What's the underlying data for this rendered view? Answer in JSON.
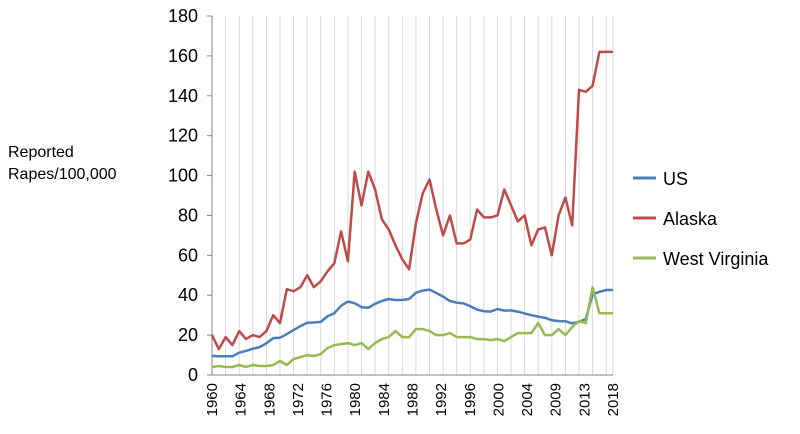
{
  "chart_data": {
    "type": "line",
    "title": "",
    "ylabel_lines": [
      "Reported",
      "Rapes/100,000"
    ],
    "xlabel": "",
    "ylim": [
      0,
      180
    ],
    "yticks": [
      0,
      20,
      40,
      60,
      80,
      100,
      120,
      140,
      160,
      180
    ],
    "xlim": [
      1960,
      2019
    ],
    "xtick_labels": [
      "1960",
      "1964",
      "1968",
      "1972",
      "1976",
      "1980",
      "1984",
      "1988",
      "1992",
      "1996",
      "2000",
      "2004",
      "2009",
      "2013",
      "2018"
    ],
    "grid": "vertical",
    "legend_position": "right",
    "x": [
      1960,
      1961,
      1962,
      1963,
      1964,
      1965,
      1966,
      1967,
      1968,
      1969,
      1970,
      1971,
      1972,
      1973,
      1974,
      1975,
      1976,
      1977,
      1978,
      1979,
      1980,
      1981,
      1982,
      1983,
      1984,
      1985,
      1986,
      1987,
      1988,
      1989,
      1990,
      1991,
      1992,
      1993,
      1994,
      1995,
      1996,
      1997,
      1998,
      1999,
      2000,
      2001,
      2002,
      2003,
      2004,
      2005,
      2006,
      2007,
      2008,
      2009,
      2010,
      2011,
      2012,
      2013,
      2014,
      2015,
      2016,
      2017,
      2018,
      2019
    ],
    "series": [
      {
        "name": "US",
        "color": "#4a7ebb",
        "values": [
          9.6,
          9.4,
          9.4,
          9.4,
          11.2,
          12.1,
          13.2,
          14.0,
          15.9,
          18.5,
          18.7,
          20.5,
          22.5,
          24.5,
          26.2,
          26.3,
          26.6,
          29.4,
          31.0,
          34.7,
          36.8,
          36.0,
          34.0,
          33.7,
          35.7,
          37.1,
          38.1,
          37.6,
          37.6,
          38.1,
          41.2,
          42.3,
          42.8,
          41.1,
          39.3,
          37.1,
          36.3,
          35.9,
          34.5,
          32.8,
          32.0,
          31.8,
          33.1,
          32.3,
          32.4,
          31.8,
          30.9,
          30.0,
          29.3,
          28.7,
          27.5,
          27.0,
          26.9,
          25.9,
          26.6,
          28.1,
          40.4,
          41.7,
          42.6,
          42.6
        ]
      },
      {
        "name": "Alaska",
        "color": "#be4b48",
        "values": [
          20.0,
          13.0,
          19.0,
          15.0,
          22.0,
          18.0,
          20.0,
          19.0,
          22.0,
          30.0,
          26.0,
          43.0,
          42.0,
          44.0,
          50.0,
          44.0,
          47.0,
          52.0,
          56.0,
          72.0,
          57.0,
          102.0,
          85.0,
          102.0,
          93.0,
          78.0,
          73.0,
          65.0,
          58.0,
          53.0,
          76.0,
          91.0,
          98.0,
          83.0,
          70.0,
          80.0,
          66.0,
          66.0,
          68.0,
          83.0,
          79.0,
          79.0,
          80.0,
          93.0,
          85.0,
          77.0,
          80.0,
          65.0,
          73.0,
          74.0,
          60.0,
          80.0,
          89.0,
          75.0,
          143.0,
          142.0,
          145.0,
          162.0,
          162.0,
          162.0
        ]
      },
      {
        "name": "West Virginia",
        "color": "#98b954",
        "values": [
          4.0,
          4.5,
          4.0,
          4.0,
          5.0,
          4.0,
          5.0,
          4.5,
          4.5,
          5.0,
          7.0,
          5.0,
          8.0,
          9.0,
          10.0,
          9.5,
          10.5,
          13.5,
          15.0,
          15.5,
          16.0,
          15.0,
          16.0,
          13.0,
          16.0,
          18.0,
          19.0,
          22.0,
          19.0,
          19.0,
          23.0,
          23.0,
          22.0,
          20.0,
          20.0,
          21.0,
          19.0,
          19.0,
          19.0,
          18.0,
          18.0,
          17.5,
          18.0,
          17.0,
          19.0,
          21.0,
          21.0,
          21.0,
          26.0,
          20.0,
          20.0,
          23.0,
          20.0,
          24.0,
          27.0,
          26.0,
          44.0,
          31.0,
          31.0,
          31.0
        ]
      }
    ]
  }
}
